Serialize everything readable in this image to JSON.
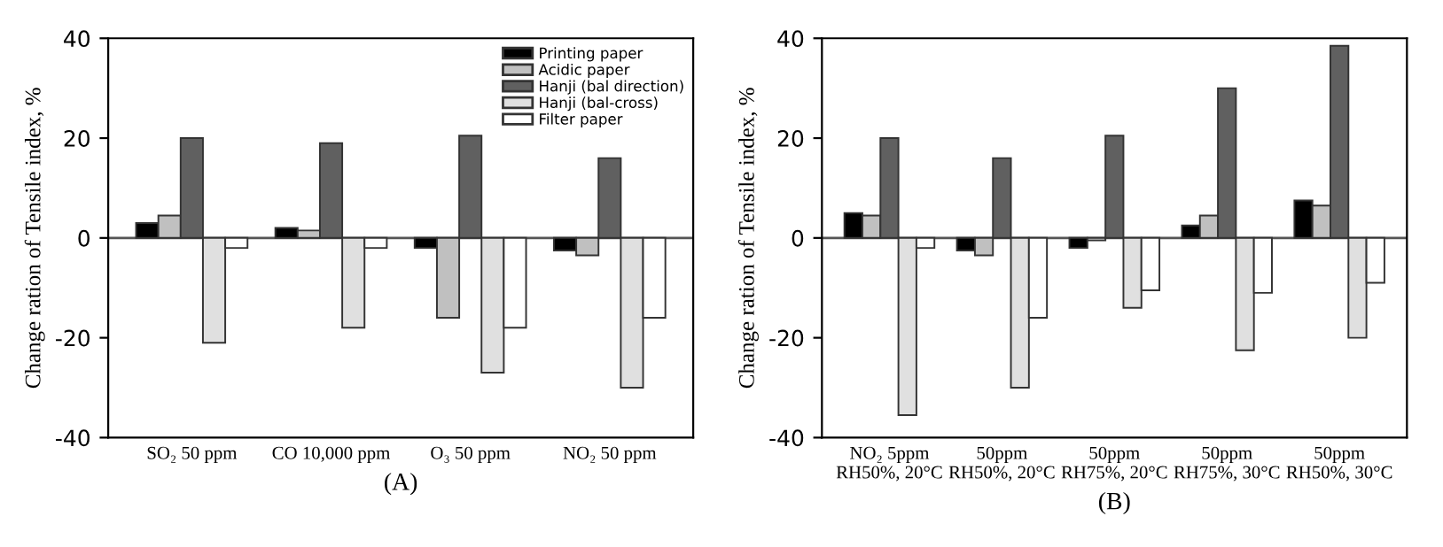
{
  "chart_data": [
    {
      "type": "bar",
      "xlabel": "(A)",
      "ylabel": "Change ration of Tensile index, %",
      "categories": [
        "SO₂ 50 ppm",
        "CO 10,000 ppm",
        "O₃ 50 ppm",
        "NO₂ 50 ppm"
      ],
      "ylim": [
        -40,
        40
      ],
      "yticks": [
        -40,
        -20,
        0,
        20,
        40
      ],
      "legend": "top right",
      "grid": false,
      "ref_lines": [
        {
          "axis": "y",
          "value": 0,
          "color": "#555555"
        }
      ],
      "series": [
        {
          "name": "Printing paper",
          "color": "#000000",
          "values": [
            3,
            2,
            -2,
            -2.5
          ]
        },
        {
          "name": "Acidic paper",
          "color": "#c0c0c0",
          "values": [
            4.5,
            1.5,
            -16,
            -3.5
          ]
        },
        {
          "name": "Hanji (bal direction)",
          "color": "#606060",
          "values": [
            20,
            19,
            20.5,
            16
          ]
        },
        {
          "name": "Hanji (bal-cross)",
          "color": "#e0e0e0",
          "values": [
            -21,
            -18,
            -27,
            -30
          ]
        },
        {
          "name": "Filter paper",
          "color": "#ffffff",
          "values": [
            -2,
            -2,
            -18,
            -16
          ]
        }
      ]
    },
    {
      "type": "bar",
      "xlabel": "(B)",
      "ylabel": "Change ration of Tensile index, %",
      "categories": [
        "NO₂ 5ppm\nRH50%, 20°C",
        "50ppm\nRH50%, 20°C",
        "50ppm\nRH75%, 20°C",
        "50ppm\nRH75%, 30°C",
        "50ppm\nRH50%, 30°C"
      ],
      "ylim": [
        -40,
        40
      ],
      "yticks": [
        -40,
        -20,
        0,
        20,
        40
      ],
      "legend": false,
      "grid": false,
      "ref_lines": [
        {
          "axis": "y",
          "value": 0,
          "color": "#555555"
        }
      ],
      "series": [
        {
          "color": "#000000",
          "values": [
            5,
            -2.5,
            -2,
            2.5,
            7.5
          ]
        },
        {
          "color": "#c0c0c0",
          "values": [
            4.5,
            -3.5,
            -0.5,
            4.5,
            6.5
          ]
        },
        {
          "color": "#606060",
          "values": [
            20,
            16,
            20.5,
            30,
            38.5
          ]
        },
        {
          "color": "#e0e0e0",
          "values": [
            -35.5,
            -30,
            -14,
            -22.5,
            -20
          ]
        },
        {
          "color": "#ffffff",
          "values": [
            -2,
            -16,
            -10.5,
            -11,
            -9
          ]
        }
      ]
    }
  ]
}
